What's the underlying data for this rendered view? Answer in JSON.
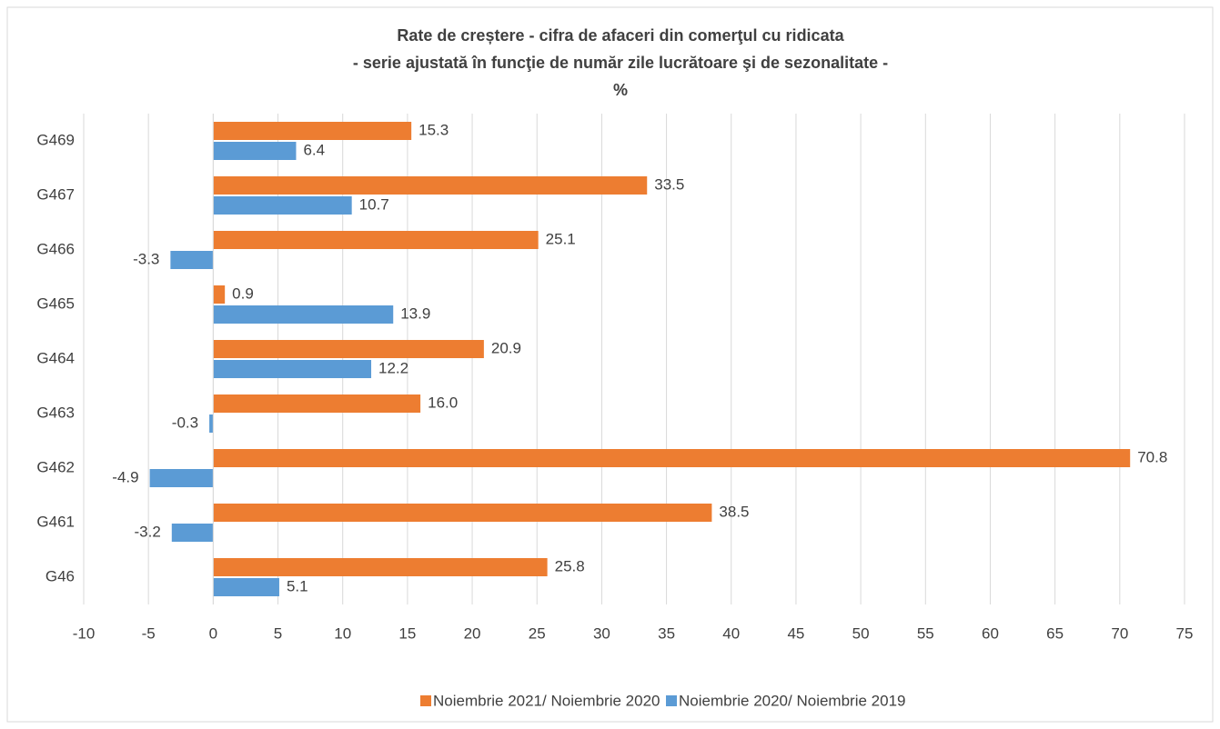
{
  "chart_data": {
    "type": "hbar",
    "title": "Rate de creștere - cifra de afaceri din comerţul cu ridicata",
    "subtitle": "- serie ajustată în funcţie de număr zile lucrătoare şi de sezonalitate -",
    "unit": "%",
    "categories": [
      "G46",
      "G461",
      "G462",
      "G463",
      "G464",
      "G465",
      "G466",
      "G467",
      "G469"
    ],
    "series": [
      {
        "name": "Noiembrie 2021/ Noiembrie 2020",
        "color": "#ed7d31",
        "values": [
          25.8,
          38.5,
          70.8,
          16.0,
          20.9,
          0.9,
          25.1,
          33.5,
          15.3
        ],
        "value_labels": [
          "25.8",
          "38.5",
          "70.8",
          "16.0",
          "20.9",
          "0.9",
          "25.1",
          "33.5",
          "15.3"
        ]
      },
      {
        "name": "Noiembrie 2020/ Noiembrie 2019",
        "color": "#5b9bd5",
        "values": [
          5.1,
          -3.2,
          -4.9,
          -0.3,
          12.2,
          13.9,
          -3.3,
          10.7,
          6.4
        ],
        "value_labels": [
          "5.1",
          "-3.2",
          "-4.9",
          "-0.3",
          "12.2",
          "13.9",
          "-3.3",
          "10.7",
          "6.4"
        ]
      }
    ],
    "xlim": [
      -10,
      75
    ],
    "xticks": [
      -10,
      -5,
      0,
      5,
      10,
      15,
      20,
      25,
      30,
      35,
      40,
      45,
      50,
      55,
      60,
      65,
      70,
      75
    ],
    "grid": true,
    "legend": "bottom"
  }
}
